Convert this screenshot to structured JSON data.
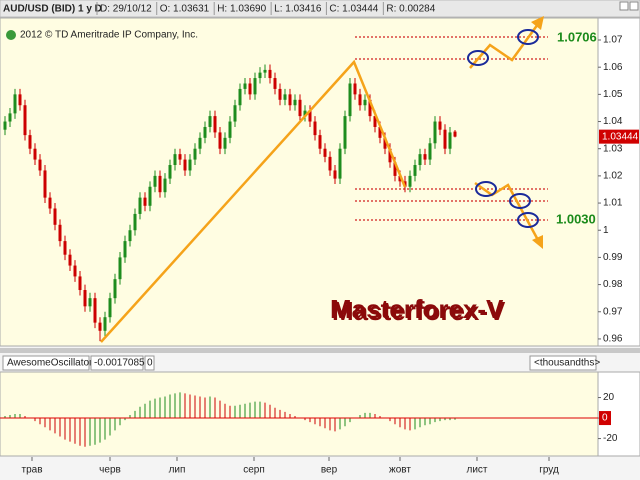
{
  "chart_data": [
    {
      "type": "candlestick",
      "title": "AUD/USD (BID) 1 y D",
      "info": [
        "D: 29/10/12",
        "O: 1.03631",
        "H: 1.03690",
        "L: 1.03416",
        "C: 1.03444",
        "R: 0.00284"
      ],
      "copyright": "2012 © TD Ameritrade IP Company, Inc.",
      "annotations": [
        "1.0706",
        "1.0030",
        "Masterforex-V"
      ],
      "up_color": "#1e8c1e",
      "down_color": "#cc0000",
      "ohlc": [
        [
          1.037,
          1.042,
          1.035,
          1.04
        ],
        [
          1.04,
          1.045,
          1.038,
          1.043
        ],
        [
          1.043,
          1.052,
          1.041,
          1.05
        ],
        [
          1.05,
          1.052,
          1.044,
          1.046
        ],
        [
          1.046,
          1.048,
          1.033,
          1.035
        ],
        [
          1.035,
          1.037,
          1.028,
          1.03
        ],
        [
          1.03,
          1.032,
          1.024,
          1.026
        ],
        [
          1.026,
          1.028,
          1.02,
          1.022
        ],
        [
          1.022,
          1.024,
          1.01,
          1.012
        ],
        [
          1.012,
          1.014,
          1.006,
          1.008
        ],
        [
          1.008,
          1.01,
          1.0,
          1.002
        ],
        [
          1.002,
          1.004,
          0.994,
          0.996
        ],
        [
          0.996,
          0.998,
          0.989,
          0.991
        ],
        [
          0.991,
          0.993,
          0.985,
          0.987
        ],
        [
          0.987,
          0.989,
          0.981,
          0.983
        ],
        [
          0.983,
          0.985,
          0.976,
          0.978
        ],
        [
          0.978,
          0.98,
          0.97,
          0.972
        ],
        [
          0.972,
          0.977,
          0.97,
          0.975
        ],
        [
          0.975,
          0.977,
          0.964,
          0.966
        ],
        [
          0.966,
          0.968,
          0.9592,
          0.963
        ],
        [
          0.963,
          0.97,
          0.961,
          0.968
        ],
        [
          0.968,
          0.977,
          0.966,
          0.975
        ],
        [
          0.975,
          0.984,
          0.973,
          0.982
        ],
        [
          0.982,
          0.992,
          0.98,
          0.99
        ],
        [
          0.99,
          0.998,
          0.988,
          0.996
        ],
        [
          0.996,
          1.002,
          0.994,
          1.0
        ],
        [
          1.0,
          1.008,
          0.998,
          1.006
        ],
        [
          1.006,
          1.014,
          1.004,
          1.012
        ],
        [
          1.012,
          1.014,
          1.007,
          1.009
        ],
        [
          1.009,
          1.018,
          1.007,
          1.016
        ],
        [
          1.016,
          1.022,
          1.014,
          1.02
        ],
        [
          1.02,
          1.022,
          1.012,
          1.014
        ],
        [
          1.014,
          1.021,
          1.012,
          1.019
        ],
        [
          1.019,
          1.026,
          1.017,
          1.024
        ],
        [
          1.024,
          1.03,
          1.022,
          1.028
        ],
        [
          1.028,
          1.03,
          1.024,
          1.026
        ],
        [
          1.026,
          1.028,
          1.02,
          1.022
        ],
        [
          1.022,
          1.028,
          1.02,
          1.026
        ],
        [
          1.026,
          1.032,
          1.024,
          1.03
        ],
        [
          1.03,
          1.036,
          1.028,
          1.034
        ],
        [
          1.034,
          1.04,
          1.032,
          1.038
        ],
        [
          1.038,
          1.044,
          1.036,
          1.042
        ],
        [
          1.042,
          1.044,
          1.034,
          1.036
        ],
        [
          1.036,
          1.038,
          1.028,
          1.03
        ],
        [
          1.03,
          1.036,
          1.028,
          1.034
        ],
        [
          1.034,
          1.042,
          1.032,
          1.04
        ],
        [
          1.04,
          1.048,
          1.038,
          1.046
        ],
        [
          1.046,
          1.054,
          1.044,
          1.052
        ],
        [
          1.052,
          1.056,
          1.05,
          1.054
        ],
        [
          1.054,
          1.056,
          1.048,
          1.05
        ],
        [
          1.05,
          1.058,
          1.048,
          1.056
        ],
        [
          1.056,
          1.06,
          1.054,
          1.058
        ],
        [
          1.058,
          1.061,
          1.056,
          1.059
        ],
        [
          1.059,
          1.061,
          1.054,
          1.056
        ],
        [
          1.056,
          1.058,
          1.05,
          1.052
        ],
        [
          1.052,
          1.054,
          1.046,
          1.048
        ],
        [
          1.048,
          1.052,
          1.046,
          1.05
        ],
        [
          1.05,
          1.052,
          1.044,
          1.046
        ],
        [
          1.046,
          1.05,
          1.044,
          1.048
        ],
        [
          1.048,
          1.05,
          1.04,
          1.042
        ],
        [
          1.042,
          1.046,
          1.04,
          1.044
        ],
        [
          1.044,
          1.046,
          1.038,
          1.04
        ],
        [
          1.04,
          1.042,
          1.033,
          1.035
        ],
        [
          1.035,
          1.037,
          1.028,
          1.03
        ],
        [
          1.03,
          1.032,
          1.025,
          1.027
        ],
        [
          1.027,
          1.029,
          1.02,
          1.022
        ],
        [
          1.022,
          1.024,
          1.017,
          1.019
        ],
        [
          1.019,
          1.032,
          1.017,
          1.03
        ],
        [
          1.03,
          1.044,
          1.028,
          1.042
        ],
        [
          1.042,
          1.056,
          1.04,
          1.054
        ],
        [
          1.054,
          1.056,
          1.048,
          1.05
        ],
        [
          1.05,
          1.052,
          1.044,
          1.046
        ],
        [
          1.046,
          1.05,
          1.044,
          1.048
        ],
        [
          1.048,
          1.05,
          1.04,
          1.042
        ],
        [
          1.042,
          1.044,
          1.036,
          1.038
        ],
        [
          1.038,
          1.04,
          1.032,
          1.034
        ],
        [
          1.034,
          1.036,
          1.028,
          1.03
        ],
        [
          1.03,
          1.032,
          1.023,
          1.025
        ],
        [
          1.025,
          1.027,
          1.018,
          1.02
        ],
        [
          1.02,
          1.022,
          1.016,
          1.018
        ],
        [
          1.018,
          1.02,
          1.014,
          1.016
        ],
        [
          1.016,
          1.022,
          1.014,
          1.02
        ],
        [
          1.02,
          1.026,
          1.018,
          1.024
        ],
        [
          1.024,
          1.03,
          1.022,
          1.028
        ],
        [
          1.028,
          1.03,
          1.024,
          1.026
        ],
        [
          1.026,
          1.034,
          1.024,
          1.032
        ],
        [
          1.032,
          1.042,
          1.03,
          1.04
        ],
        [
          1.04,
          1.042,
          1.035,
          1.037
        ],
        [
          1.037,
          1.039,
          1.028,
          1.03
        ],
        [
          1.03,
          1.038,
          1.028,
          1.036
        ],
        [
          1.03631,
          1.0369,
          1.03416,
          1.03444
        ]
      ],
      "xlim": [
        -1,
        118.6
      ],
      "ylim": [
        0.9574,
        1.0781
      ],
      "yticks": [
        0.96,
        0.97,
        0.98,
        0.99,
        1,
        1.01,
        1.02,
        1.03,
        1.04,
        1.05,
        1.06,
        1.07
      ]
    },
    {
      "type": "bar",
      "title": "AwesomeOscillator",
      "value_text": "-0.0017085",
      "status": "0",
      "unit": "<thousandths>",
      "up_color": "#1e8c1e",
      "down_color": "#cc0000",
      "values": [
        2,
        3,
        4,
        4,
        2,
        0,
        -3,
        -6,
        -9,
        -12,
        -15,
        -18,
        -21,
        -23,
        -25,
        -27,
        -28,
        -27,
        -26,
        -24,
        -21,
        -17,
        -12,
        -7,
        -2,
        3,
        7,
        11,
        14,
        17,
        19,
        20,
        21,
        23,
        24,
        25,
        24,
        23,
        22,
        21,
        20,
        21,
        20,
        17,
        14,
        12,
        12,
        13,
        14,
        15,
        16,
        16,
        15,
        13,
        10,
        8,
        6,
        4,
        2,
        0,
        -2,
        -4,
        -6,
        -8,
        -10,
        -12,
        -13,
        -11,
        -8,
        -4,
        0,
        3,
        5,
        5,
        4,
        2,
        0,
        -3,
        -6,
        -9,
        -11,
        -12,
        -11,
        -9,
        -7,
        -6,
        -4,
        -3,
        -2,
        -2,
        -1.7
      ],
      "xlim": [
        -1,
        118.6
      ],
      "ylim": [
        -37,
        44.9
      ],
      "yticks": [
        20,
        0,
        -20
      ],
      "xticks": [
        {
          "value": 5.4,
          "label": "трав"
        },
        {
          "value": 21,
          "label": "черв"
        },
        {
          "value": 34.4,
          "label": "лип"
        },
        {
          "value": 49.8,
          "label": "серп"
        },
        {
          "value": 64.8,
          "label": "вер"
        },
        {
          "value": 79,
          "label": "жовт"
        },
        {
          "value": 94.4,
          "label": "лист"
        },
        {
          "value": 108.8,
          "label": "груд"
        }
      ]
    }
  ]
}
